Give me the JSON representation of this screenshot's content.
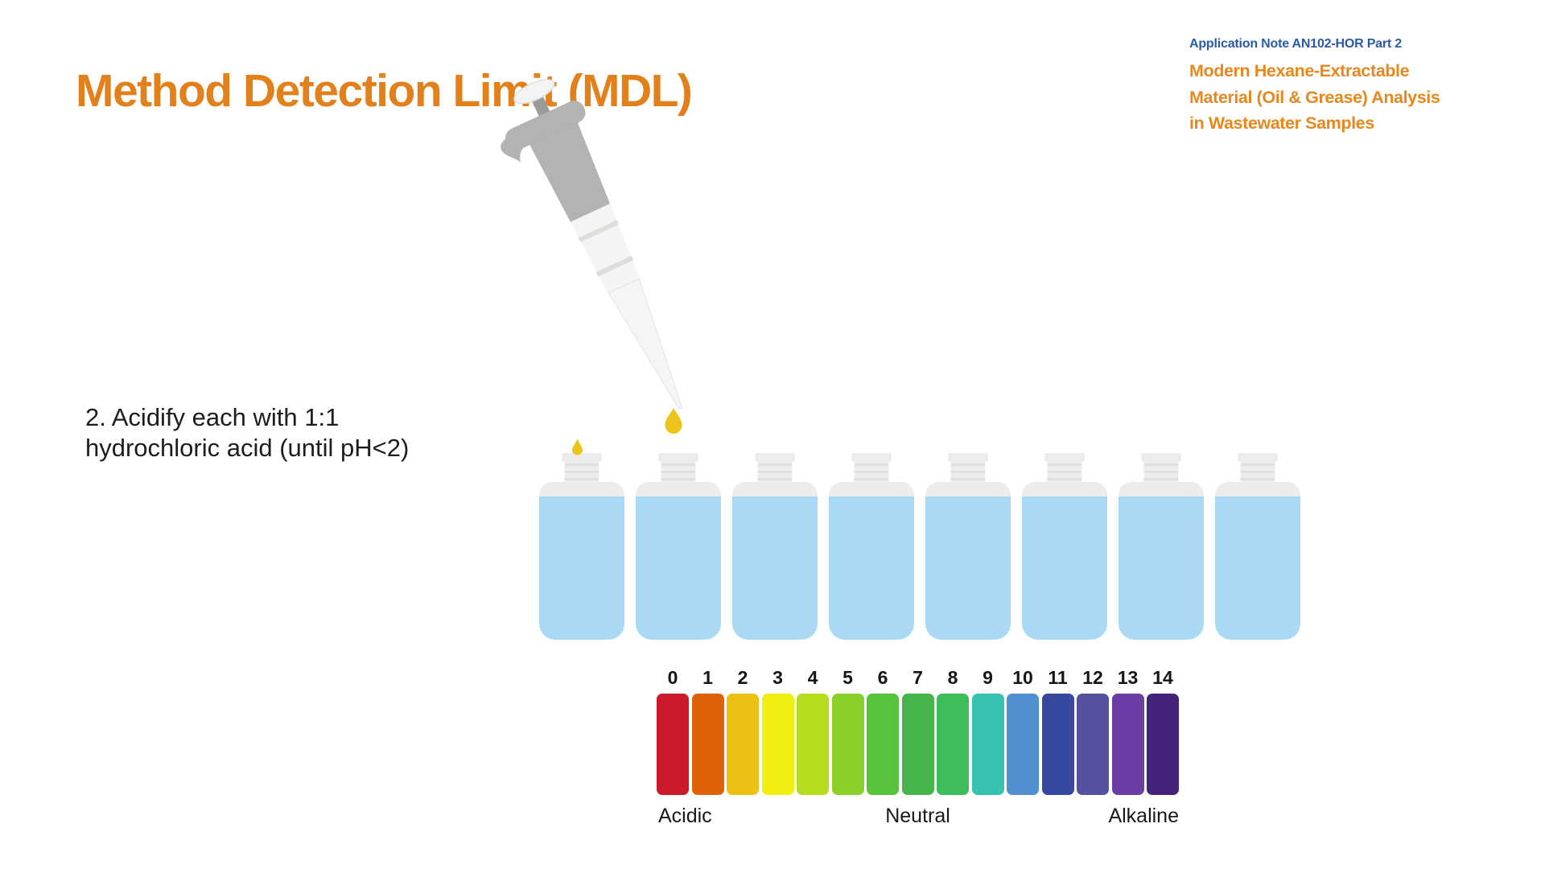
{
  "slide": {
    "title": "Method Detection Limit (MDL)"
  },
  "application_note": {
    "kicker": "Application Note AN102-HOR Part 2",
    "title_lines": [
      "Modern Hexane-Extractable",
      "Material (Oil & Grease) Analysis",
      "in Wastewater Samples"
    ]
  },
  "step": {
    "lines": [
      "2. Acidify each with 1:1",
      "hydrochloric acid (until pH<2)"
    ]
  },
  "illustration": {
    "pipette": "micropipette dispensing acid drop",
    "bottle_count": 8,
    "drop_color": "#ecc41a",
    "bottle_liquid_color": "#a9d9f4",
    "bottle_cap_color": "#ececec",
    "pipette_body_color": "#b3b3b3"
  },
  "ph_scale": {
    "values": [
      "0",
      "1",
      "2",
      "3",
      "4",
      "5",
      "6",
      "7",
      "8",
      "9",
      "10",
      "11",
      "12",
      "13",
      "14"
    ],
    "colors": [
      "#cb1b2a",
      "#df6209",
      "#edc113",
      "#f0ef11",
      "#b5dc1d",
      "#8bd029",
      "#57c23c",
      "#45b54a",
      "#3ebc5c",
      "#35c2b1",
      "#5090ce",
      "#36499f",
      "#55519e",
      "#6c3da5",
      "#422379"
    ],
    "labels": {
      "acidic": "Acidic",
      "neutral": "Neutral",
      "alkaline": "Alkaline"
    }
  },
  "colors": {
    "accent_orange": "#e2801c",
    "accent_blue": "#2b5aa7",
    "text_dark": "#1d1d1d"
  }
}
